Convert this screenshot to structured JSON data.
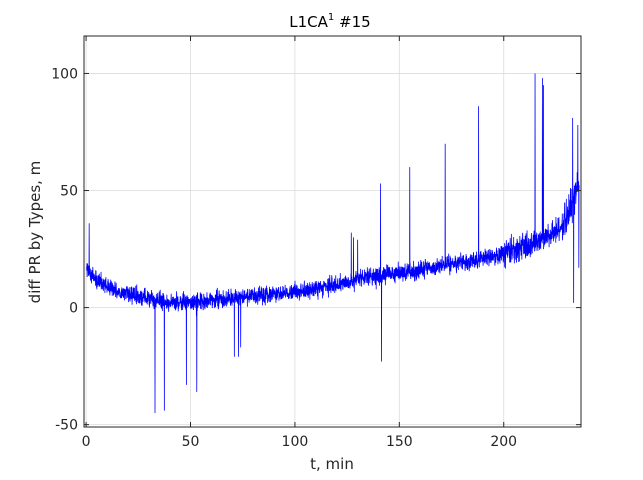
{
  "chart_data": {
    "type": "line",
    "title": {
      "main": "L1CA",
      "superscript": "1",
      "rest": " #15"
    },
    "xlabel": "t, min",
    "ylabel": "diff PR by Types, m",
    "xlim": [
      -1,
      237
    ],
    "ylim": [
      -51,
      116
    ],
    "xticks": [
      0,
      50,
      100,
      150,
      200
    ],
    "yticks": [
      -50,
      0,
      50,
      100
    ],
    "grid": true,
    "line_color": "#0000ff",
    "trend": [
      [
        0,
        17
      ],
      [
        5,
        12
      ],
      [
        10,
        9
      ],
      [
        15,
        7
      ],
      [
        20,
        5.5
      ],
      [
        25,
        4.5
      ],
      [
        30,
        4
      ],
      [
        35,
        3
      ],
      [
        40,
        2.5
      ],
      [
        45,
        2
      ],
      [
        50,
        2
      ],
      [
        55,
        2.5
      ],
      [
        60,
        3
      ],
      [
        65,
        3.5
      ],
      [
        70,
        4
      ],
      [
        75,
        4.5
      ],
      [
        80,
        5
      ],
      [
        90,
        6
      ],
      [
        100,
        7
      ],
      [
        110,
        8
      ],
      [
        120,
        10
      ],
      [
        130,
        12
      ],
      [
        140,
        13.5
      ],
      [
        150,
        15
      ],
      [
        160,
        16
      ],
      [
        170,
        18
      ],
      [
        180,
        19
      ],
      [
        190,
        21
      ],
      [
        200,
        23
      ],
      [
        205,
        25
      ],
      [
        210,
        26
      ],
      [
        215,
        28
      ],
      [
        220,
        30
      ],
      [
        225,
        32
      ],
      [
        230,
        37
      ],
      [
        233,
        45
      ],
      [
        236,
        55
      ]
    ],
    "spikes": [
      [
        1.5,
        36
      ],
      [
        33,
        -45
      ],
      [
        37.5,
        -44
      ],
      [
        48,
        -33
      ],
      [
        53,
        -36
      ],
      [
        71,
        -21
      ],
      [
        73,
        -21
      ],
      [
        74,
        -17
      ],
      [
        127,
        32
      ],
      [
        128,
        30
      ],
      [
        130,
        29
      ],
      [
        141,
        53
      ],
      [
        141.5,
        -23
      ],
      [
        155,
        60
      ],
      [
        172,
        70
      ],
      [
        188,
        86
      ],
      [
        215,
        100
      ],
      [
        218.5,
        98
      ],
      [
        219,
        95
      ],
      [
        233,
        81
      ],
      [
        233.5,
        2
      ],
      [
        235.5,
        78
      ],
      [
        236,
        17
      ]
    ]
  }
}
